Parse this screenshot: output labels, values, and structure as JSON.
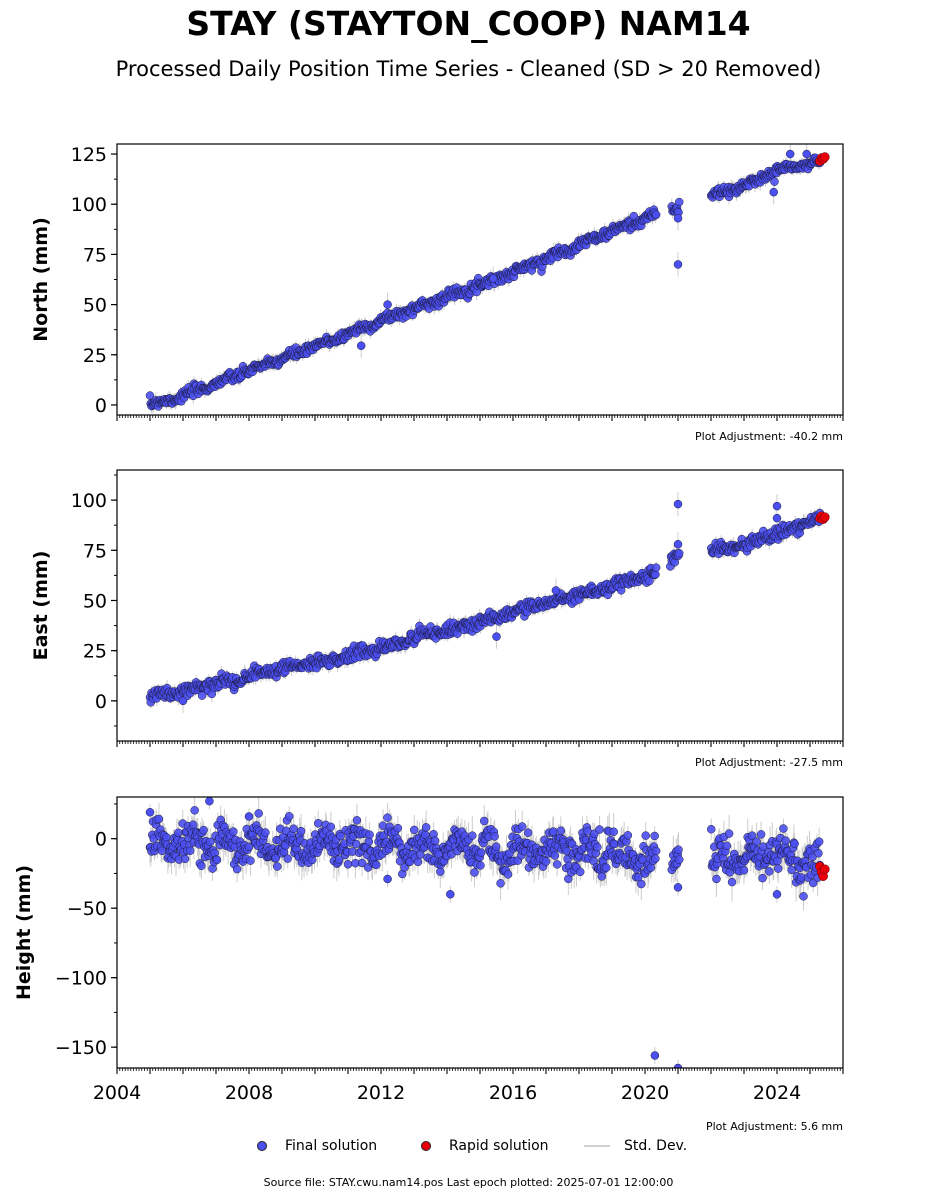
{
  "title": "STAY (STAYTON_COOP) NAM14",
  "subtitle": "Processed Daily Position Time Series - Cleaned (SD > 20 Removed)",
  "legend": {
    "final": "Final solution",
    "rapid": "Rapid solution",
    "std": "Std. Dev."
  },
  "footer": "Source file: STAY.cwu.nam14.pos  Last epoch plotted: 2025-07-01 12:00:00",
  "colors": {
    "final": "#4b4ff0",
    "rapid": "#e8000b",
    "std": "#cccccc",
    "edge": "#1a1a3a"
  },
  "chart_data": [
    {
      "type": "scatter",
      "ylabel": "North (mm)",
      "adjustment": "Plot Adjustment: -40.2 mm",
      "xlim": [
        2004.0,
        2026.0
      ],
      "ylim": [
        -5,
        130
      ],
      "yticks": [
        0,
        25,
        50,
        75,
        100,
        125
      ],
      "ytick_labels": [
        "0",
        "25",
        "50",
        "75",
        "100",
        "125"
      ],
      "xticks": [
        2004,
        2008,
        2012,
        2016,
        2020,
        2024
      ],
      "show_xtick_labels": false,
      "final_trend": [
        [
          2005.0,
          0
        ],
        [
          2006.0,
          4.5
        ],
        [
          2008.0,
          17
        ],
        [
          2010.0,
          29
        ],
        [
          2012.0,
          42
        ],
        [
          2014.0,
          54
        ],
        [
          2016.0,
          66
        ],
        [
          2018.0,
          80
        ],
        [
          2020.0,
          93
        ],
        [
          2020.3,
          95
        ],
        [
          2020.8,
          97
        ],
        [
          2021.0,
          98
        ],
        [
          2022.0,
          104
        ],
        [
          2023.0,
          109
        ],
        [
          2024.0,
          117
        ],
        [
          2025.3,
          121
        ]
      ],
      "final_gaps": [
        [
          2020.35,
          2020.8
        ],
        [
          2021.05,
          2022.0
        ]
      ],
      "final_noise": 1.2,
      "final_outliers": [
        [
          2011.4,
          29.5
        ],
        [
          2012.2,
          50
        ],
        [
          2015.4,
          63
        ],
        [
          2021.0,
          70
        ],
        [
          2021.0,
          93
        ],
        [
          2023.9,
          106
        ],
        [
          2024.4,
          125
        ],
        [
          2024.9,
          125
        ]
      ],
      "rapid": [
        [
          2025.3,
          121.5
        ],
        [
          2025.35,
          123
        ],
        [
          2025.4,
          122.5
        ],
        [
          2025.45,
          123.5
        ]
      ]
    },
    {
      "type": "scatter",
      "ylabel": "East (mm)",
      "adjustment": "Plot Adjustment: -27.5 mm",
      "xlim": [
        2004.0,
        2026.0
      ],
      "ylim": [
        -20,
        115
      ],
      "yticks": [
        0,
        25,
        50,
        75,
        100
      ],
      "ytick_labels": [
        "0",
        "25",
        "50",
        "75",
        "100"
      ],
      "xticks": [
        2004,
        2008,
        2012,
        2016,
        2020,
        2024
      ],
      "show_xtick_labels": false,
      "final_trend": [
        [
          2005.0,
          2
        ],
        [
          2006.0,
          5
        ],
        [
          2007.0,
          8
        ],
        [
          2008.0,
          12
        ],
        [
          2009.0,
          16
        ],
        [
          2010.0,
          19
        ],
        [
          2011.0,
          23
        ],
        [
          2012.0,
          26
        ],
        [
          2013.0,
          31
        ],
        [
          2014.0,
          35
        ],
        [
          2015.0,
          39
        ],
        [
          2016.0,
          44
        ],
        [
          2017.0,
          49
        ],
        [
          2018.0,
          53
        ],
        [
          2019.0,
          57
        ],
        [
          2019.5,
          60
        ],
        [
          2020.0,
          62
        ],
        [
          2020.3,
          64
        ],
        [
          2020.8,
          70
        ],
        [
          2021.0,
          73
        ],
        [
          2022.0,
          75
        ],
        [
          2023.0,
          78
        ],
        [
          2024.0,
          83
        ],
        [
          2025.3,
          91
        ]
      ],
      "final_gaps": [
        [
          2020.35,
          2020.75
        ],
        [
          2021.05,
          2022.0
        ]
      ],
      "final_noise": 1.5,
      "final_outliers": [
        [
          2006.0,
          0
        ],
        [
          2015.5,
          32
        ],
        [
          2017.3,
          55
        ],
        [
          2021.0,
          98
        ],
        [
          2021.0,
          78
        ],
        [
          2024.0,
          97
        ],
        [
          2024.0,
          91
        ]
      ],
      "rapid": [
        [
          2025.3,
          91
        ],
        [
          2025.35,
          92
        ],
        [
          2025.4,
          90.5
        ],
        [
          2025.45,
          91.5
        ]
      ]
    },
    {
      "type": "scatter",
      "ylabel": "Height (mm)",
      "adjustment": "Plot Adjustment: 5.6 mm",
      "xlim": [
        2004.0,
        2026.0
      ],
      "ylim": [
        -165,
        30
      ],
      "yticks": [
        0,
        -50,
        -100,
        -150
      ],
      "ytick_labels": [
        "0",
        "−50",
        "−100",
        "−150"
      ],
      "xticks": [
        2004,
        2008,
        2012,
        2016,
        2020,
        2024
      ],
      "xtick_labels": [
        "2004",
        "2008",
        "2012",
        "2016",
        "2020",
        "2024"
      ],
      "show_xtick_labels": true,
      "final_trend": [
        [
          2005.0,
          -2
        ],
        [
          2008.0,
          -4
        ],
        [
          2012.0,
          -6
        ],
        [
          2016.0,
          -7
        ],
        [
          2019.0,
          -9
        ],
        [
          2020.0,
          -14
        ],
        [
          2020.3,
          -16
        ],
        [
          2020.8,
          -10
        ],
        [
          2021.0,
          -14
        ],
        [
          2022.0,
          -14
        ],
        [
          2024.0,
          -10
        ],
        [
          2025.3,
          -22
        ]
      ],
      "final_gaps": [
        [
          2020.35,
          2020.8
        ],
        [
          2021.05,
          2022.0
        ]
      ],
      "final_noise": 7,
      "final_outliers": [
        [
          2005.0,
          19
        ],
        [
          2006.8,
          27
        ],
        [
          2008.0,
          16
        ],
        [
          2012.2,
          -29
        ],
        [
          2014.1,
          -40
        ],
        [
          2020.3,
          -156
        ],
        [
          2021.0,
          -165
        ],
        [
          2021.0,
          -35
        ],
        [
          2024.0,
          -40
        ]
      ],
      "rapid": [
        [
          2025.3,
          -20
        ],
        [
          2025.35,
          -24
        ],
        [
          2025.4,
          -27
        ],
        [
          2025.45,
          -22
        ]
      ]
    }
  ]
}
